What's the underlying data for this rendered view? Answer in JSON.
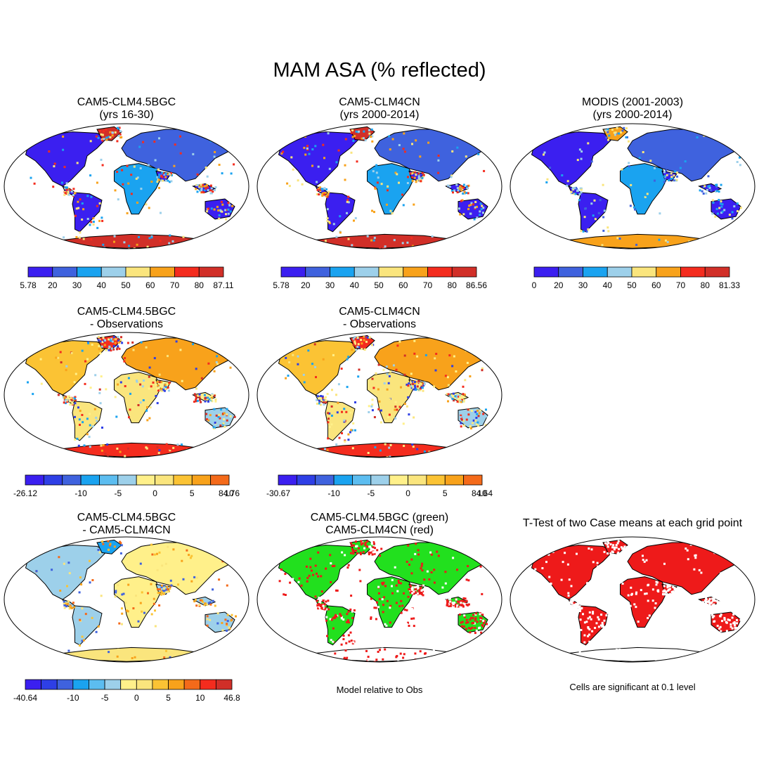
{
  "figure_title": "MAM ASA (% reflected)",
  "colors": {
    "absolute": [
      "#3b1ff0",
      "#3f62de",
      "#1aa3f0",
      "#9dd0ea",
      "#fae57d",
      "#f8a21b",
      "#f42c1e",
      "#d12f28"
    ],
    "diff_11": [
      "#3b1ff0",
      "#2e3fe6",
      "#3f62de",
      "#1aa3f0",
      "#5cbdf0",
      "#9dd0ea",
      "#fff08a",
      "#fae57d",
      "#fbc334",
      "#f8a21b",
      "#f46a1a",
      "#f42c1e",
      "#d12f28"
    ],
    "diff_12": [
      "#3b1ff0",
      "#2e3fe6",
      "#3f62de",
      "#1aa3f0",
      "#5cbdf0",
      "#9dd0ea",
      "#fff08a",
      "#fae57d",
      "#fbc334",
      "#f8a21b",
      "#f46a1a",
      "#f42c1e",
      "#d12f28"
    ],
    "green": "#22e01e",
    "red": "#ee1a1a"
  },
  "panels": {
    "p1": {
      "title1": "CAM5-CLM4.5BGC",
      "title2": "(yrs 16-30)",
      "ticks": [
        "5.78",
        "20",
        "30",
        "40",
        "50",
        "60",
        "70",
        "80",
        "87.11"
      ]
    },
    "p2": {
      "title1": "CAM5-CLM4CN",
      "title2": "(yrs 2000-2014)",
      "ticks": [
        "5.78",
        "20",
        "30",
        "40",
        "50",
        "60",
        "70",
        "80",
        "86.56"
      ]
    },
    "p3": {
      "title1": "MODIS (2001-2003)",
      "title2": "(yrs 2000-2014)",
      "ticks": [
        "0",
        "20",
        "30",
        "40",
        "50",
        "60",
        "70",
        "80",
        "81.33"
      ]
    },
    "p4": {
      "title1": "CAM5-CLM4.5BGC",
      "title2": "- Observations",
      "ticks": [
        "-26.12",
        "-10",
        "-5",
        "0",
        "5",
        "10",
        "84.76"
      ]
    },
    "p5": {
      "title1": "CAM5-CLM4CN",
      "title2": "- Observations",
      "ticks": [
        "-30.67",
        "-10",
        "-5",
        "0",
        "5",
        "10",
        "84.64"
      ]
    },
    "p7": {
      "title1": "CAM5-CLM4.5BGC",
      "title2": "- CAM5-CLM4CN",
      "ticks": [
        "-40.64",
        "-10",
        "-5",
        "0",
        "5",
        "10",
        "46.8"
      ]
    },
    "p8": {
      "title1": "CAM5-CLM4.5BGC (green)",
      "title2": "CAM5-CLM4CN (red)",
      "note": "Model relative to Obs"
    },
    "p9": {
      "title1": "T-Test of two Case means at each grid point",
      "note": "Cells are significant at 0.1 level"
    }
  }
}
